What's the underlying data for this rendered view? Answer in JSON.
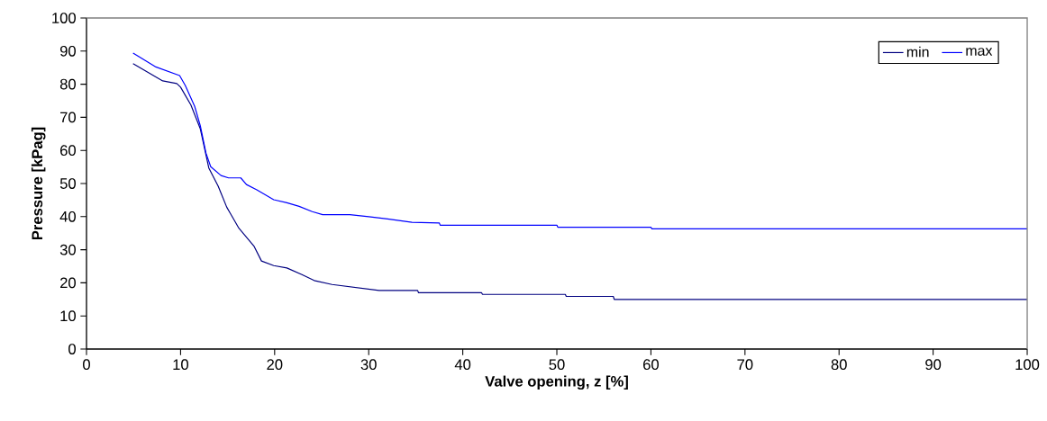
{
  "chart_data": {
    "type": "line",
    "xlabel": "Valve opening, z [%]",
    "ylabel": "Pressure [kPag]",
    "xlim": [
      0,
      100
    ],
    "ylim": [
      0,
      100
    ],
    "xticks": [
      0,
      10,
      20,
      30,
      40,
      50,
      60,
      70,
      80,
      90,
      100
    ],
    "yticks": [
      0,
      10,
      20,
      30,
      40,
      50,
      60,
      70,
      80,
      90,
      100
    ],
    "legend": "top right",
    "grid": false,
    "series": [
      {
        "name": "min",
        "color": "#000080",
        "x": [
          4.95,
          8.1,
          9.6,
          10,
          11.1,
          12.1,
          13,
          14,
          14.9,
          16.2,
          17.8,
          18.6,
          19.9,
          21.3,
          22.9,
          24.2,
          26.1,
          28.6,
          31.1,
          35.2,
          35.3,
          42,
          42.1,
          50.9,
          51,
          56,
          56.1,
          100
        ],
        "values": [
          86.2,
          81,
          80.2,
          79.1,
          73.7,
          66.5,
          54.7,
          49.2,
          42.9,
          36.5,
          31.1,
          26.6,
          25.2,
          24.5,
          22.5,
          20.7,
          19.5,
          18.6,
          17.7,
          17.7,
          17,
          17,
          16.5,
          16.5,
          15.9,
          15.9,
          15,
          15
        ]
      },
      {
        "name": "max",
        "color": "#0000ff",
        "x": [
          4.95,
          7.3,
          9.9,
          10.5,
          11.5,
          12.1,
          12.7,
          13.2,
          14.3,
          15.1,
          16.4,
          17,
          18.1,
          19.9,
          21.3,
          22.6,
          24,
          25.1,
          28,
          30,
          32,
          34.6,
          37.5,
          37.6,
          50,
          50.1,
          60,
          60.1,
          100
        ],
        "values": [
          89.4,
          85.3,
          82.6,
          79.6,
          73.3,
          67.4,
          59.2,
          55.1,
          52.4,
          51.7,
          51.7,
          49.7,
          48.1,
          45.1,
          44.2,
          43.1,
          41.5,
          40.6,
          40.6,
          40,
          39.3,
          38.3,
          38.1,
          37.4,
          37.4,
          36.8,
          36.8,
          36.3,
          36.3
        ]
      }
    ]
  }
}
